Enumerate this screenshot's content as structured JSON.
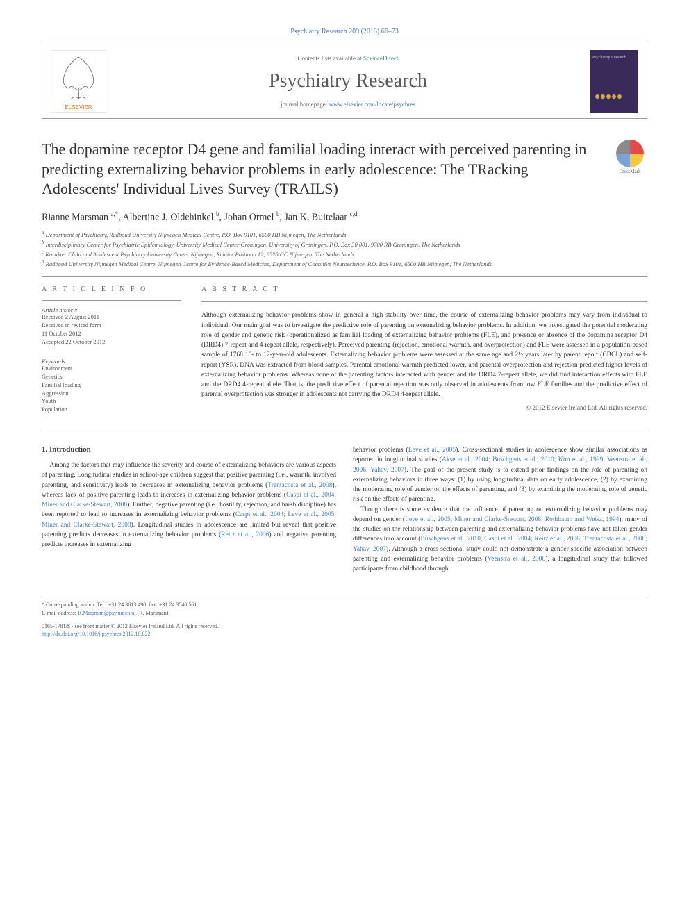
{
  "top_link": "Psychiatry Research 209 (2013) 66–73",
  "header": {
    "contents_text": "Contents lists available at ",
    "contents_link": "ScienceDirect",
    "journal_name": "Psychiatry Research",
    "homepage_text": "journal homepage: ",
    "homepage_link": "www.elsevier.com/locate/psychres",
    "elsevier_label": "ELSEVIER",
    "cover_label": "Psychiatry Research"
  },
  "article": {
    "title": "The dopamine receptor D4 gene and familial loading interact with perceived parenting in predicting externalizing behavior problems in early adolescence: The TRacking Adolescents' Individual Lives Survey (TRAILS)",
    "crossmark_label": "CrossMark",
    "authors_html": "Rianne Marsman <sup>a,*</sup>, Albertine J. Oldehinkel <sup>b</sup>, Johan Ormel <sup>b</sup>, Jan K. Buitelaar <sup>c,d</sup>",
    "affiliations": [
      "a Department of Psychiatry, Radboud University Nijmegen Medical Centre, P.O. Box 9101, 6500 HB Nijmegen, The Netherlands",
      "b Interdisciplinary Center for Psychiatric Epidemiology, University Medical Center Groningen, University of Groningen, P.O. Box 30.001, 9700 RB Groningen, The Netherlands",
      "c Karakter Child and Adolescent Psychiatry University Center Nijmegen, Reinier Postlaan 12, 6526 GC Nijmegen, The Netherlands",
      "d Radboud University Nijmegen Medical Centre, Nijmegen Centre for Evidence-Based Medicine, Department of Cognitive Neuroscience, P.O. Box 9101, 6500 HB Nijmegen, The Netherlands"
    ]
  },
  "article_info": {
    "heading": "A R T I C L E  I N F O",
    "history_label": "Article history:",
    "history": [
      "Received 2 August 2011",
      "Received in revised form",
      "11 October 2012",
      "Accepted 22 October 2012"
    ],
    "keywords_label": "Keywords:",
    "keywords": [
      "Environment",
      "Genetics",
      "Familial loading",
      "Aggression",
      "Youth",
      "Population"
    ]
  },
  "abstract": {
    "heading": "A B S T R A C T",
    "text": "Although externalizing behavior problems show in general a high stability over time, the course of externalizing behavior problems may vary from individual to individual. Our main goal was to investigate the predictive role of parenting on externalizing behavior problems. In addition, we investigated the potential moderating role of gender and genetic risk (operationalized as familial loading of externalizing behavior problems (FLE), and presence or absence of the dopamine receptor D4 (DRD4) 7-repeat and 4-repeat allele, respectively). Perceived parenting (rejection, emotional warmth, and overprotection) and FLE were assessed in a population-based sample of 1768 10- to 12-year-old adolescents. Externalizing behavior problems were assessed at the same age and 2½ years later by parent report (CBCL) and self-report (YSR). DNA was extracted from blood samples. Parental emotional warmth predicted lower, and parental overprotection and rejection predicted higher levels of externalizing behavior problems. Whereas none of the parenting factors interacted with gender and the DRD4 7-repeat allele, we did find interaction effects with FLE and the DRD4 4-repeat allele. That is, the predictive effect of parental rejection was only observed in adolescents from low FLE families and the predictive effect of parental overprotection was stronger in adolescents not carrying the DRD4 4-repeat allele.",
    "copyright": "© 2012 Elsevier Ireland Ltd. All rights reserved."
  },
  "body": {
    "section_heading": "1. Introduction",
    "col1": "Among the factors that may influence the severity and course of externalizing behaviors are various aspects of parenting. Longitudinal studies in school-age children suggest that positive parenting (i.e., warmth, involved parenting, and sensitivity) leads to decreases in externalizing behavior problems (Trentacosta et al., 2008), whereas lack of positive parenting leads to increases in externalizing behavior problems (Caspi et al., 2004; Miner and Clarke-Stewart, 2008). Further, negative parenting (i.e., hostility, rejection, and harsh discipline) has been reported to lead to increases in externalizing behavior problems (Caspi et al., 2004; Leve et al., 2005; Miner and Clarke-Stewart, 2008). Longitudinal studies in adolescence are limited but reveal that positive parenting predicts decreases in externalizing behavior problems (Reitz et al., 2006) and negative parenting predicts increases in externalizing",
    "col2": "behavior problems (Leve et al., 2005). Cross-sectional studies in adolescence show similar associations as reported in longitudinal studies (Akse et al., 2004; Buschgens et al., 2010; Kim et al., 1999; Veenstra et al., 2006; Yahav, 2007). The goal of the present study is to extend prior findings on the role of parenting on externalizing behaviors in three ways: (1) by using longitudinal data on early adolescence, (2) by examining the moderating role of gender on the effects of parenting, and (3) by examining the moderating role of genetic risk on the effects of parenting.\n\nThough there is some evidence that the influence of parenting on externalizing behavior problems may depend on gender (Leve et al., 2005; Miner and Clarke-Stewart, 2008; Rothbaum and Weisz, 1994), many of the studies on the relationship between parenting and externalizing behavior problems have not taken gender differences into account (Buschgens et al., 2010; Caspi et al., 2004; Reitz et al., 2006; Trentacosta et al., 2008; Yahav, 2007). Although a cross-sectional study could not demonstrate a gender-specific association between parenting and externalizing behavior problems (Veenstra et al., 2006), a longitudinal study that followed participants from childhood through"
  },
  "footer": {
    "corresponding": "* Corresponding author. Tel.: +31 24 3613 490; fax: +31 24 3540 561.",
    "email_label": "E-mail address: ",
    "email": "R.Marsman@psy.umcn.nl",
    "email_name": " (R. Marsman).",
    "issn": "0165-1781/$ - see front matter © 2012 Elsevier Ireland Ltd. All rights reserved.",
    "doi": "http://dx.doi.org/10.1016/j.psychres.2012.10.022"
  },
  "colors": {
    "link": "#4a7db8",
    "text": "#333333",
    "muted": "#555555",
    "border": "#999999"
  }
}
